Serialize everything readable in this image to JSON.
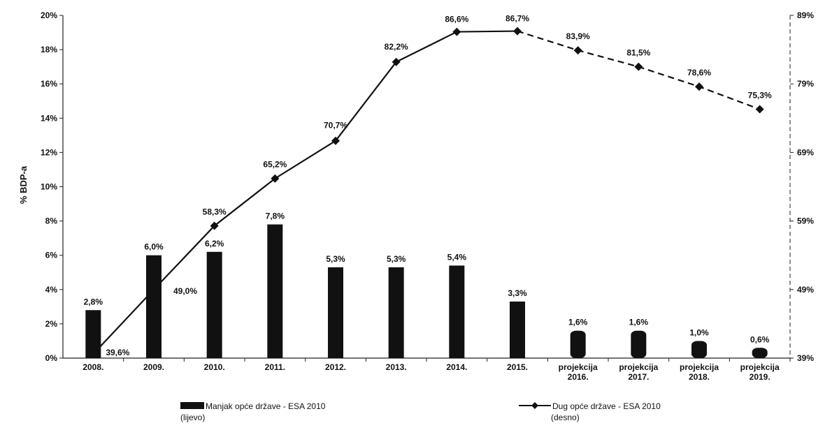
{
  "chart_data": {
    "type": "bar+line",
    "title": "",
    "ylabel": "% BDP-a",
    "categories": [
      "2008.",
      "2009.",
      "2010.",
      "2011.",
      "2012.",
      "2013.",
      "2014.",
      "2015.",
      "projekcija 2016.",
      "projekcija 2017.",
      "projekcija 2018.",
      "projekcija 2019."
    ],
    "y_left": {
      "ylim": [
        0,
        20
      ],
      "ticks": [
        "0%",
        "2%",
        "4%",
        "6%",
        "8%",
        "10%",
        "12%",
        "14%",
        "16%",
        "18%",
        "20%"
      ]
    },
    "y_right": {
      "ylim": [
        39,
        89
      ],
      "ticks": [
        "39%",
        "49%",
        "59%",
        "69%",
        "79%",
        "89%"
      ]
    },
    "series": [
      {
        "name": "Manjak opće države - ESA 2010 (lijevo)",
        "type": "bar",
        "axis": "left",
        "color": "#111111",
        "values": [
          2.8,
          6.0,
          6.2,
          7.8,
          5.3,
          5.3,
          5.4,
          3.3,
          1.6,
          1.6,
          1.0,
          0.6
        ],
        "labels": [
          "2,8%",
          "6,0%",
          "6,2%",
          "7,8%",
          "5,3%",
          "5,3%",
          "5,4%",
          "3,3%",
          "1,6%",
          "1,6%",
          "1,0%",
          "0,6%"
        ]
      },
      {
        "name": "Dug opće države - ESA 2010 (desno)",
        "type": "line",
        "axis": "right",
        "color": "#111111",
        "marker": "diamond",
        "values": [
          39.6,
          49.0,
          58.3,
          65.2,
          70.7,
          82.2,
          86.6,
          86.7,
          83.9,
          81.5,
          78.6,
          75.3
        ],
        "labels": [
          "39,6%",
          "49,0%",
          "58,3%",
          "65,2%",
          "70,7%",
          "82,2%",
          "86,6%",
          "86,7%",
          "83,9%",
          "81,5%",
          "78,6%",
          "75,3%"
        ],
        "dashed_from_category": "2015."
      }
    ],
    "legend": {
      "placement": "bottom",
      "items": [
        {
          "label_line1": "Manjak opće države - ESA 2010",
          "label_line2": "(lijevo)"
        },
        {
          "label_line1": "Dug opće države - ESA 2010",
          "label_line2": "(desno)"
        }
      ]
    }
  }
}
